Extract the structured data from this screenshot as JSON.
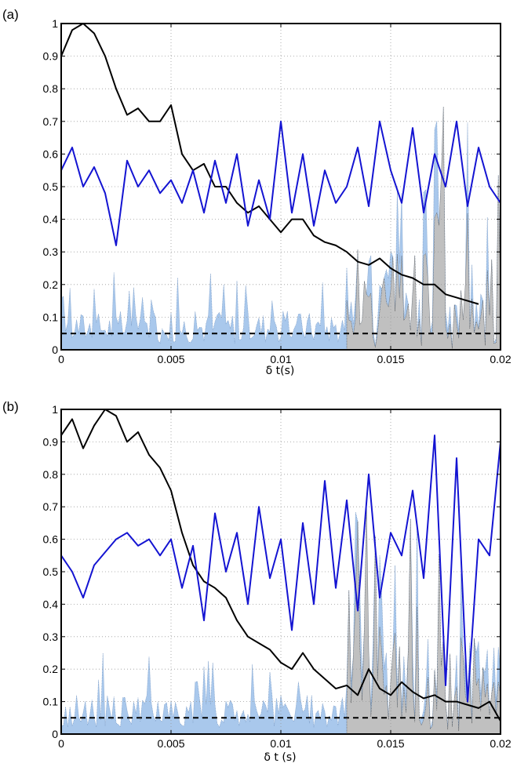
{
  "figure": {
    "panels": [
      "(a)",
      "(b)"
    ]
  },
  "colors": {
    "black_line": "#000000",
    "blue_line": "#1414d2",
    "blue_fill": "#a9c8ec",
    "gray_fill": "#c0c0c0",
    "threshold": "#000000",
    "grid": "#9a9a9a"
  },
  "chart_data": [
    {
      "type": "line",
      "panel_label": "(a)",
      "xlabel": "δ t(s)",
      "ylabel": "",
      "title": "",
      "xlim": [
        0,
        0.02
      ],
      "ylim": [
        0,
        1
      ],
      "x_ticks": [
        "0",
        "0.005",
        "0.01",
        "0.015",
        "0.02"
      ],
      "y_ticks": [
        "0",
        "0.1",
        "0.2",
        "0.3",
        "0.4",
        "0.5",
        "0.6",
        "0.7",
        "0.8",
        "0.9",
        "1"
      ],
      "grid": true,
      "threshold": 0.05,
      "series": [
        {
          "color": "black",
          "x": [
            0,
            0.0005,
            0.001,
            0.0015,
            0.002,
            0.0025,
            0.003,
            0.0035,
            0.004,
            0.0045,
            0.005,
            0.0055,
            0.006,
            0.0065,
            0.007,
            0.0075,
            0.008,
            0.0085,
            0.009,
            0.0095,
            0.01,
            0.0105,
            0.011,
            0.0115,
            0.012,
            0.0125,
            0.013,
            0.0135,
            0.014,
            0.0145,
            0.015,
            0.0155,
            0.016,
            0.0165,
            0.017,
            0.0175,
            0.018,
            0.0185,
            0.019
          ],
          "y": [
            0.9,
            0.98,
            1.0,
            0.97,
            0.9,
            0.8,
            0.72,
            0.74,
            0.7,
            0.7,
            0.75,
            0.6,
            0.55,
            0.57,
            0.5,
            0.5,
            0.45,
            0.42,
            0.44,
            0.4,
            0.36,
            0.4,
            0.4,
            0.35,
            0.33,
            0.32,
            0.3,
            0.27,
            0.26,
            0.28,
            0.25,
            0.23,
            0.22,
            0.2,
            0.2,
            0.17,
            0.16,
            0.15,
            0.14
          ]
        },
        {
          "color": "blue",
          "x": [
            0,
            0.0005,
            0.001,
            0.0015,
            0.002,
            0.0025,
            0.003,
            0.0035,
            0.004,
            0.0045,
            0.005,
            0.0055,
            0.006,
            0.0065,
            0.007,
            0.0075,
            0.008,
            0.0085,
            0.009,
            0.0095,
            0.01,
            0.0105,
            0.011,
            0.0115,
            0.012,
            0.0125,
            0.013,
            0.0135,
            0.014,
            0.0145,
            0.015,
            0.0155,
            0.016,
            0.0165,
            0.017,
            0.0175,
            0.018,
            0.0185,
            0.019,
            0.0195,
            0.02
          ],
          "y": [
            0.55,
            0.62,
            0.5,
            0.56,
            0.48,
            0.32,
            0.58,
            0.5,
            0.55,
            0.48,
            0.52,
            0.45,
            0.55,
            0.42,
            0.58,
            0.45,
            0.6,
            0.38,
            0.52,
            0.4,
            0.7,
            0.42,
            0.6,
            0.38,
            0.55,
            0.45,
            0.5,
            0.62,
            0.44,
            0.7,
            0.55,
            0.45,
            0.68,
            0.42,
            0.6,
            0.5,
            0.7,
            0.44,
            0.62,
            0.5,
            0.45
          ]
        }
      ]
    },
    {
      "type": "line",
      "panel_label": "(b)",
      "xlabel": "δ t (s)",
      "ylabel": "",
      "title": "",
      "xlim": [
        0,
        0.02
      ],
      "ylim": [
        0,
        1
      ],
      "x_ticks": [
        "0",
        "0.005",
        "0.01",
        "0.015",
        "0.02"
      ],
      "y_ticks": [
        "0",
        "0.1",
        "0.2",
        "0.3",
        "0.4",
        "0.5",
        "0.6",
        "0.7",
        "0.8",
        "0.9",
        "1"
      ],
      "grid": true,
      "threshold": 0.05,
      "series": [
        {
          "color": "black",
          "x": [
            0,
            0.0005,
            0.001,
            0.0015,
            0.002,
            0.0025,
            0.003,
            0.0035,
            0.004,
            0.0045,
            0.005,
            0.0055,
            0.006,
            0.0065,
            0.007,
            0.0075,
            0.008,
            0.0085,
            0.009,
            0.0095,
            0.01,
            0.0105,
            0.011,
            0.0115,
            0.012,
            0.0125,
            0.013,
            0.0135,
            0.014,
            0.0145,
            0.015,
            0.0155,
            0.016,
            0.0165,
            0.017,
            0.0175,
            0.018,
            0.0185,
            0.019,
            0.0195,
            0.02
          ],
          "y": [
            0.92,
            0.97,
            0.88,
            0.95,
            1.0,
            0.98,
            0.9,
            0.93,
            0.86,
            0.82,
            0.75,
            0.62,
            0.52,
            0.47,
            0.45,
            0.42,
            0.35,
            0.3,
            0.28,
            0.26,
            0.22,
            0.2,
            0.25,
            0.2,
            0.17,
            0.14,
            0.15,
            0.12,
            0.2,
            0.14,
            0.12,
            0.16,
            0.13,
            0.11,
            0.12,
            0.1,
            0.1,
            0.09,
            0.08,
            0.1,
            0.04
          ]
        },
        {
          "color": "blue",
          "x": [
            0,
            0.0005,
            0.001,
            0.0015,
            0.002,
            0.0025,
            0.003,
            0.0035,
            0.004,
            0.0045,
            0.005,
            0.0055,
            0.006,
            0.0065,
            0.007,
            0.0075,
            0.008,
            0.0085,
            0.009,
            0.0095,
            0.01,
            0.0105,
            0.011,
            0.0115,
            0.012,
            0.0125,
            0.013,
            0.0135,
            0.014,
            0.0145,
            0.015,
            0.0155,
            0.016,
            0.0165,
            0.017,
            0.0175,
            0.018,
            0.0185,
            0.019,
            0.0195,
            0.02
          ],
          "y": [
            0.55,
            0.5,
            0.42,
            0.52,
            0.56,
            0.6,
            0.62,
            0.58,
            0.6,
            0.55,
            0.6,
            0.45,
            0.58,
            0.35,
            0.68,
            0.5,
            0.62,
            0.4,
            0.7,
            0.48,
            0.6,
            0.32,
            0.65,
            0.4,
            0.78,
            0.45,
            0.72,
            0.38,
            0.8,
            0.42,
            0.62,
            0.55,
            0.75,
            0.48,
            0.92,
            0.15,
            0.85,
            0.1,
            0.6,
            0.55,
            0.9
          ]
        }
      ]
    }
  ]
}
